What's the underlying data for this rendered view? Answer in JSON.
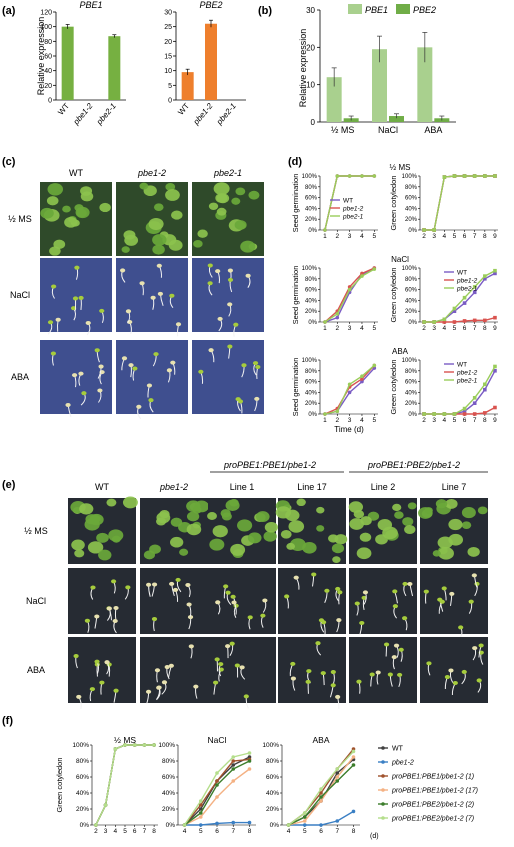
{
  "panel_labels": {
    "a": "(a)",
    "b": "(b)",
    "c": "(c)",
    "d": "(d)",
    "e": "(e)",
    "f": "(f)"
  },
  "panel_a": {
    "ylabel": "Relative expression",
    "charts": [
      {
        "title": "PBE1",
        "categories": [
          "WT",
          "pbe1-2",
          "pbe2-1"
        ],
        "values": [
          100,
          0,
          87
        ],
        "errors": [
          3,
          0,
          2
        ],
        "yticks": [
          0,
          20,
          40,
          60,
          80,
          100,
          120
        ],
        "color": "#76b041"
      },
      {
        "title": "PBE2",
        "categories": [
          "WT",
          "pbe1-2",
          "pbe2-1"
        ],
        "values": [
          9.5,
          26,
          0
        ],
        "errors": [
          1,
          1.2,
          0
        ],
        "yticks": [
          0,
          5,
          10,
          15,
          20,
          25,
          30
        ],
        "color": "#ee7f2d"
      }
    ]
  },
  "panel_b": {
    "ylabel": "Relative expression",
    "legend": [
      "PBE1",
      "PBE2"
    ],
    "colors": [
      "#a9d08e",
      "#70ad47"
    ],
    "yticks": [
      0,
      10,
      20,
      30
    ],
    "categories": [
      "½ MS",
      "NaCl",
      "ABA"
    ]
  },
  "panel_c": {
    "columns": [
      "WT",
      "pbe1-2",
      "pbe2-1"
    ],
    "rows": [
      "½ MS",
      "NaCl",
      "ABA"
    ]
  },
  "panel_d": {
    "rows": [
      "½ MS",
      "NaCl",
      "ABA"
    ],
    "left_ylabel": "Seed germination",
    "right_ylabel": "Green cotyledon",
    "xlabel": "Time (d)",
    "legend": [
      "WT",
      "pbe1-2",
      "pbe2-1"
    ],
    "colors": [
      "#7a5cc4",
      "#d9534f",
      "#9acd5a"
    ],
    "yticks": [
      "0%",
      "20%",
      "40%",
      "60%",
      "80%",
      "100%"
    ]
  },
  "chart_data": [
    {
      "type": "bar",
      "title": "PBE1",
      "categories": [
        "WT",
        "pbe1-2",
        "pbe2-1"
      ],
      "values": [
        100,
        0,
        87
      ],
      "ylabel": "Relative expression",
      "ylim": [
        0,
        120
      ]
    },
    {
      "type": "bar",
      "title": "PBE2",
      "categories": [
        "WT",
        "pbe1-2",
        "pbe2-1"
      ],
      "values": [
        9.5,
        26,
        0
      ],
      "ylabel": "Relative expression",
      "ylim": [
        0,
        30
      ]
    },
    {
      "type": "bar",
      "categories": [
        "½ MS",
        "NaCl",
        "ABA"
      ],
      "series": [
        {
          "name": "PBE1",
          "values": [
            12,
            19.5,
            20
          ]
        },
        {
          "name": "PBE2",
          "values": [
            1,
            1.6,
            1
          ]
        }
      ],
      "ylabel": "Relative expression",
      "ylim": [
        0,
        30
      ]
    },
    {
      "type": "line",
      "title": "½ MS",
      "x": [
        1,
        2,
        3,
        4,
        5
      ],
      "series": [
        {
          "name": "WT",
          "values": [
            0,
            100,
            100,
            100,
            100
          ]
        },
        {
          "name": "pbe1-2",
          "values": [
            0,
            100,
            100,
            100,
            100
          ]
        },
        {
          "name": "pbe2-1",
          "values": [
            0,
            100,
            100,
            100,
            100
          ]
        }
      ],
      "ylabel": "Seed germination",
      "ylim": [
        0,
        100
      ]
    },
    {
      "type": "line",
      "x": [
        2,
        3,
        4,
        5,
        6,
        7,
        8,
        9
      ],
      "series": [
        {
          "name": "WT",
          "values": [
            0,
            0,
            98,
            100,
            100,
            100,
            100,
            100
          ]
        },
        {
          "name": "pbe1-2",
          "values": [
            0,
            0,
            98,
            100,
            100,
            100,
            100,
            100
          ]
        },
        {
          "name": "pbe2-1",
          "values": [
            0,
            0,
            98,
            100,
            100,
            100,
            100,
            100
          ]
        }
      ],
      "ylabel": "Green cotyledon",
      "ylim": [
        0,
        100
      ]
    },
    {
      "type": "line",
      "title": "NaCl",
      "x": [
        1,
        2,
        3,
        4,
        5
      ],
      "series": [
        {
          "name": "WT",
          "values": [
            0,
            8,
            55,
            88,
            100
          ]
        },
        {
          "name": "pbe1-2",
          "values": [
            0,
            20,
            65,
            90,
            100
          ]
        },
        {
          "name": "pbe2-1",
          "values": [
            0,
            15,
            60,
            85,
            98
          ]
        }
      ],
      "ylabel": "Seed germination",
      "ylim": [
        0,
        100
      ]
    },
    {
      "type": "line",
      "x": [
        2,
        3,
        4,
        5,
        6,
        7,
        8,
        9
      ],
      "series": [
        {
          "name": "WT",
          "values": [
            0,
            0,
            5,
            20,
            35,
            55,
            80,
            90
          ]
        },
        {
          "name": "pbe1-2",
          "values": [
            0,
            0,
            0,
            0,
            2,
            3,
            3,
            8
          ]
        },
        {
          "name": "pbe2-1",
          "values": [
            0,
            0,
            5,
            25,
            45,
            65,
            85,
            95
          ]
        }
      ],
      "ylabel": "Green cotyledon",
      "ylim": [
        0,
        100
      ]
    },
    {
      "type": "line",
      "title": "ABA",
      "x": [
        1,
        2,
        3,
        4,
        5
      ],
      "series": [
        {
          "name": "WT",
          "values": [
            0,
            5,
            40,
            60,
            85
          ]
        },
        {
          "name": "pbe1-2",
          "values": [
            0,
            10,
            50,
            65,
            90
          ]
        },
        {
          "name": "pbe2-1",
          "values": [
            0,
            5,
            55,
            70,
            90
          ]
        }
      ],
      "ylabel": "Seed germination",
      "ylim": [
        0,
        100
      ]
    },
    {
      "type": "line",
      "x": [
        2,
        3,
        4,
        5,
        6,
        7,
        8,
        9
      ],
      "series": [
        {
          "name": "WT",
          "values": [
            0,
            0,
            0,
            0,
            5,
            20,
            45,
            80
          ]
        },
        {
          "name": "pbe1-2",
          "values": [
            0,
            0,
            0,
            0,
            0,
            0,
            2,
            12
          ]
        },
        {
          "name": "pbe2-1",
          "values": [
            0,
            0,
            0,
            0,
            10,
            30,
            55,
            88
          ]
        }
      ],
      "ylabel": "Green cotyledon",
      "xlabel": "Time (d)",
      "ylim": [
        0,
        100
      ]
    },
    {
      "type": "line",
      "title": "½ MS",
      "x": [
        2,
        3,
        4,
        5,
        6,
        7,
        8
      ],
      "series": [
        {
          "name": "WT",
          "values": [
            0,
            25,
            95,
            100,
            100,
            100,
            100
          ]
        },
        {
          "name": "pbe1-2",
          "values": [
            0,
            25,
            95,
            100,
            100,
            100,
            100
          ]
        },
        {
          "name": "proPBE1:PBE1/pbe1-2 (1)",
          "values": [
            0,
            25,
            95,
            100,
            100,
            100,
            100
          ]
        },
        {
          "name": "proPBE1:PBE1/pbe1-2 (17)",
          "values": [
            0,
            25,
            95,
            100,
            100,
            100,
            100
          ]
        },
        {
          "name": "proPBE1:PBE2/pbe1-2 (2)",
          "values": [
            0,
            25,
            95,
            100,
            100,
            100,
            100
          ]
        },
        {
          "name": "proPBE1:PBE2/pbe1-2 (7)",
          "values": [
            0,
            25,
            95,
            100,
            100,
            100,
            100
          ]
        }
      ],
      "ylabel": "Green cotyledon",
      "ylim": [
        0,
        100
      ]
    },
    {
      "type": "line",
      "title": "NaCl",
      "x": [
        4,
        5,
        6,
        7,
        8
      ],
      "series": [
        {
          "name": "WT",
          "values": [
            0,
            20,
            55,
            75,
            85
          ]
        },
        {
          "name": "pbe1-2",
          "values": [
            0,
            0,
            2,
            3,
            3
          ]
        },
        {
          "name": "proPBE1:PBE1/pbe1-2 (1)",
          "values": [
            0,
            25,
            55,
            80,
            82
          ]
        },
        {
          "name": "proPBE1:PBE1/pbe1-2 (17)",
          "values": [
            0,
            10,
            35,
            55,
            70
          ]
        },
        {
          "name": "proPBE1:PBE2/pbe1-2 (2)",
          "values": [
            0,
            15,
            50,
            70,
            80
          ]
        },
        {
          "name": "proPBE1:PBE2/pbe1-2 (7)",
          "values": [
            0,
            30,
            65,
            85,
            90
          ]
        }
      ],
      "ylim": [
        0,
        100
      ]
    },
    {
      "type": "line",
      "title": "ABA",
      "x": [
        4,
        5,
        6,
        7,
        8
      ],
      "series": [
        {
          "name": "WT",
          "values": [
            0,
            10,
            30,
            65,
            82
          ]
        },
        {
          "name": "pbe1-2",
          "values": [
            0,
            0,
            0,
            5,
            17
          ]
        },
        {
          "name": "proPBE1:PBE1/pbe1-2 (1)",
          "values": [
            0,
            15,
            40,
            70,
            95
          ]
        },
        {
          "name": "proPBE1:PBE1/pbe1-2 (17)",
          "values": [
            0,
            5,
            30,
            60,
            85
          ]
        },
        {
          "name": "proPBE1:PBE2/pbe1-2 (2)",
          "values": [
            0,
            10,
            35,
            55,
            75
          ]
        },
        {
          "name": "proPBE1:PBE2/pbe1-2 (7)",
          "values": [
            0,
            15,
            45,
            70,
            92
          ]
        }
      ],
      "xlabel": "(d)",
      "ylim": [
        0,
        100
      ]
    }
  ],
  "panel_e": {
    "group_labels": [
      "proPBE1:PBE1/pbe1-2",
      "proPBE1:PBE2/pbe1-2"
    ],
    "columns": [
      "WT",
      "pbe1-2",
      "Line 1",
      "Line 17",
      "Line 2",
      "Line 7"
    ],
    "rows": [
      "½ MS",
      "NaCl",
      "ABA"
    ]
  },
  "panel_f": {
    "ylabel": "Green cotyledon",
    "titles": [
      "½ MS",
      "NaCl",
      "ABA"
    ],
    "xunit": "(d)",
    "legend": [
      "WT",
      "pbe1-2",
      "proPBE1:PBE1/pbe1-2 (1)",
      "proPBE1:PBE1/pbe1-2 (17)",
      "proPBE1:PBE2/pbe1-2 (2)",
      "proPBE1:PBE2/pbe1-2 (7)"
    ],
    "colors": [
      "#404040",
      "#3a7fc4",
      "#a0522d",
      "#f4b183",
      "#3b7d2b",
      "#b4de8b"
    ],
    "yticks": [
      "0%",
      "20%",
      "40%",
      "60%",
      "80%",
      "100%"
    ]
  }
}
